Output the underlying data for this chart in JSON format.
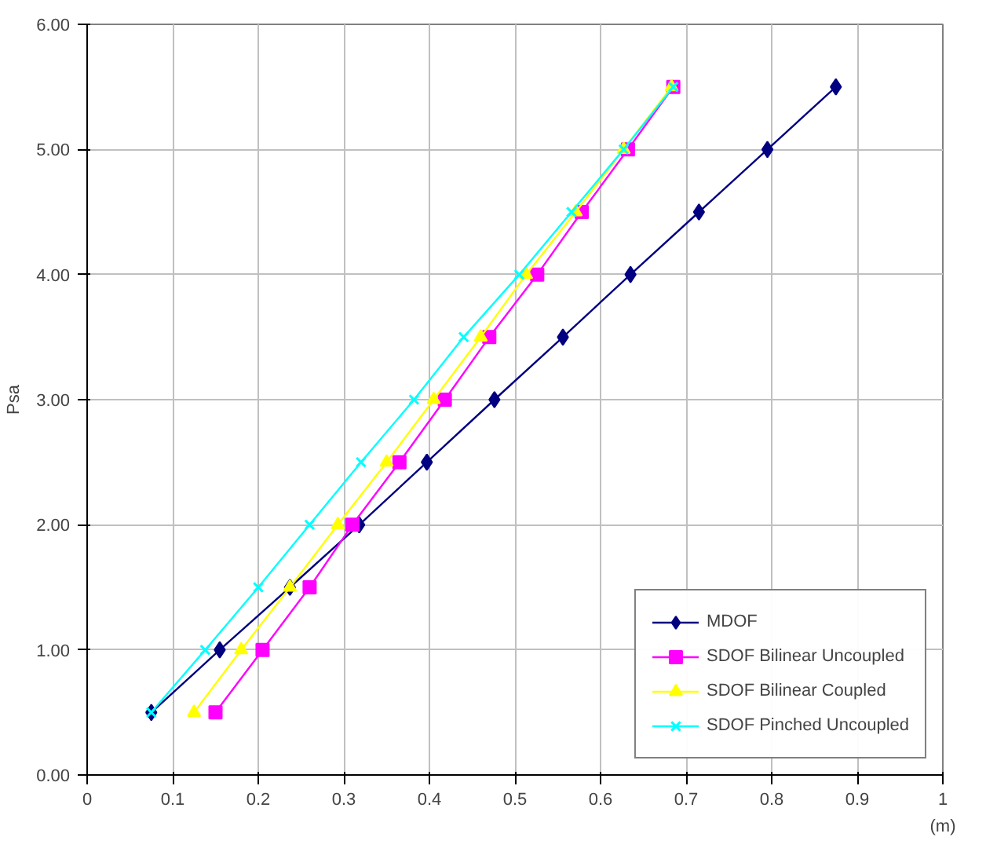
{
  "chart_data": {
    "type": "line",
    "xlabel": "(m)",
    "ylabel": "Psa",
    "xlim": [
      0,
      1
    ],
    "xticks": [
      0,
      0.1,
      0.2,
      0.3,
      0.4,
      0.5,
      0.6,
      0.7,
      0.8,
      0.9,
      1
    ],
    "ylim": [
      0,
      6
    ],
    "yticks": [
      {
        "value": 0,
        "label": "0.00"
      },
      {
        "value": 1,
        "label": "1.00"
      },
      {
        "value": 2,
        "label": "2.00"
      },
      {
        "value": 3,
        "label": "3.00"
      },
      {
        "value": 4,
        "label": "4.00"
      },
      {
        "value": 5,
        "label": "5.00"
      },
      {
        "value": 6,
        "label": "6.00"
      }
    ],
    "grid": true,
    "legend": "bottom right",
    "series": [
      {
        "name": "MDOF",
        "color": "#000080",
        "marker": "diamond",
        "x": [
          0.075,
          0.155,
          0.237,
          0.318,
          0.397,
          0.476,
          0.556,
          0.635,
          0.715,
          0.795,
          0.875
        ],
        "values": [
          0.5,
          1,
          1.5,
          2,
          2.5,
          3,
          3.5,
          4,
          4.5,
          5,
          5.5
        ]
      },
      {
        "name": "SDOF Bilinear Uncoupled",
        "color": "#ff00ff",
        "marker": "square",
        "x": [
          0.15,
          0.205,
          0.26,
          0.31,
          0.365,
          0.418,
          0.47,
          0.526,
          0.578,
          0.632,
          0.685
        ],
        "values": [
          0.5,
          1,
          1.5,
          2,
          2.5,
          3,
          3.5,
          4,
          4.5,
          5,
          5.5
        ]
      },
      {
        "name": "SDOF Bilinear Coupled",
        "color": "#ffff00",
        "marker": "triangle",
        "x": [
          0.125,
          0.18,
          0.237,
          0.293,
          0.35,
          0.405,
          0.46,
          0.513,
          0.571,
          0.627,
          0.683
        ],
        "values": [
          0.5,
          1,
          1.5,
          2,
          2.5,
          3,
          3.5,
          4,
          4.5,
          5,
          5.5
        ]
      },
      {
        "name": "SDOF Pinched Uncoupled",
        "color": "#00ffff",
        "marker": "cross",
        "x": [
          0.075,
          0.138,
          0.2,
          0.26,
          0.32,
          0.382,
          0.44,
          0.505,
          0.566,
          0.627,
          0.685
        ],
        "values": [
          0.5,
          1,
          1.5,
          2,
          2.5,
          3,
          3.5,
          4,
          4.5,
          5,
          5.5
        ]
      }
    ]
  }
}
